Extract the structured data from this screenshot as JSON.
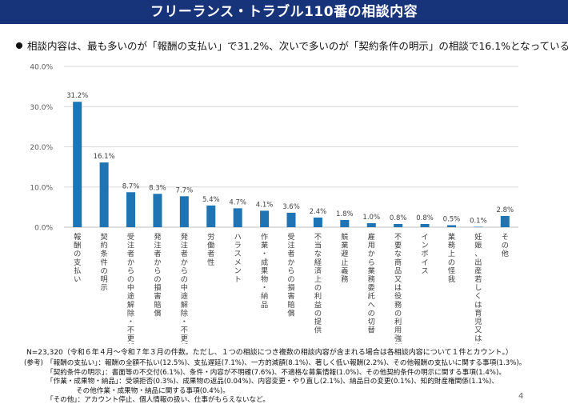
{
  "banner": {
    "title": "フリーランス・トラブル110番の相談内容"
  },
  "lead": {
    "text": "相談内容は、最も多いのが「報酬の支払い」で31.2%、次いで多いのが「契約条件の明示」の相談で16.1%となっている。"
  },
  "chart_data": {
    "type": "bar",
    "categories": [
      "報酬の支払い",
      "契約条件の明示",
      "受注者からの中途解除・不更新",
      "発注者からの損害賠償",
      "発注者からの中途解除・不更新",
      "労働者性",
      "ハラスメント",
      "作業・成果物・納品",
      "受注者からの損害賠償",
      "不当な経済上の利益の提供",
      "競業避止義務",
      "雇用から業務委託への切替",
      "不要な商品又は役務の利用強制",
      "インボイス",
      "業務上の怪我",
      "妊娠、出産若しくは育児又は介護",
      "その他"
    ],
    "values": [
      31.2,
      16.1,
      8.7,
      8.3,
      7.7,
      5.4,
      4.7,
      4.1,
      3.6,
      2.4,
      1.8,
      1.0,
      0.8,
      0.8,
      0.5,
      0.1,
      2.8
    ],
    "data_labels": [
      "31.2%",
      "16.1%",
      "8.7%",
      "8.3%",
      "7.7%",
      "5.4%",
      "4.7%",
      "4.1%",
      "3.6%",
      "2.4%",
      "1.8%",
      "1.0%",
      "0.8%",
      "0.8%",
      "0.5%",
      "0.1%",
      "2.8%"
    ],
    "ylim": [
      0,
      40
    ],
    "yticks": [
      "0.0%",
      "10.0%",
      "20.0%",
      "30.0%",
      "40.0%"
    ],
    "grid": true,
    "bar_color": "#1f74b4"
  },
  "notes": {
    "n_line": "N=23,320（令和６年４月～令和７年３月の件数。ただし、１つの相談につき複数の相談内容が含まれる場合は各相談内容について１件とカウント。）",
    "prefix": "(参考)",
    "rows": [
      "「報酬の支払い」：報酬の全額不払い(12.5%)、支払遅延(7.1%)、一方的減額(8.1%)、著しく低い報酬(2.2%)、その他報酬の支払いに関する事項(1.3%)。",
      "「契約条件の明示」：書面等の不交付(6.1%)、条件・内容が不明確(7.6%)、不適格な募集情報(1.0%)、その他契約条件の明示に関する事項(1.4%)。",
      "「作業・成果物・納品」：受領拒否(0.3%)、成果物の返品(0.04%)、内容変更・やり直し(2.1%)、納品日の変更(0.1%)、知的財産権関係(1.1%)、",
      "その他作業・成果物・納品に関する事項(0.4%)。",
      "「その他」：アカウント停止、個人情報の扱い、仕事がもらえないなど。"
    ]
  },
  "page": {
    "number": "4"
  }
}
